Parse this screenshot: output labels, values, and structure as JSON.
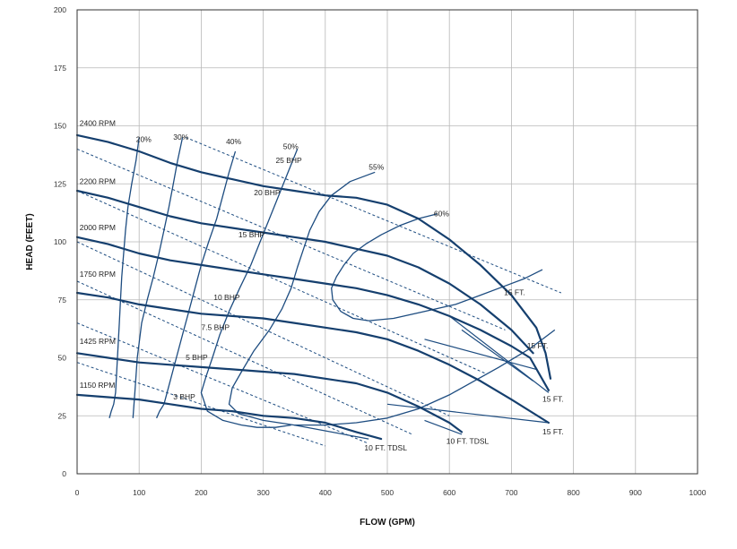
{
  "chart_data": {
    "type": "line",
    "xlabel": "FLOW (GPM)",
    "ylabel": "HEAD (FEET)",
    "xlim": [
      0,
      1000
    ],
    "ylim": [
      0,
      200
    ],
    "xticks": [
      "0",
      "100",
      "200",
      "300",
      "400",
      "500",
      "600",
      "700",
      "800",
      "900",
      "1000"
    ],
    "yticks": [
      "0",
      "25",
      "50",
      "75",
      "100",
      "125",
      "150",
      "175",
      "200"
    ],
    "grid": true,
    "speed_curves": [
      {
        "name": "2400 RPM",
        "x": [
          0,
          50,
          100,
          150,
          200,
          250,
          300,
          350,
          400,
          450,
          500,
          550,
          600,
          650,
          700,
          740,
          755,
          763
        ],
        "y": [
          146,
          143,
          139,
          134,
          130,
          127,
          124,
          122,
          120,
          119,
          116,
          110,
          101,
          90,
          77,
          63,
          52,
          41
        ]
      },
      {
        "name": "2200 RPM",
        "x": [
          0,
          50,
          100,
          150,
          200,
          250,
          300,
          350,
          400,
          450,
          500,
          550,
          600,
          650,
          700,
          735
        ],
        "y": [
          122,
          119,
          115,
          111,
          108,
          106,
          104,
          102,
          100,
          97,
          94,
          89,
          82,
          73,
          62,
          52
        ]
      },
      {
        "name": "2000 RPM",
        "x": [
          0,
          50,
          100,
          150,
          200,
          250,
          300,
          350,
          400,
          450,
          500,
          550,
          600,
          650,
          700,
          730,
          760
        ],
        "y": [
          102,
          99,
          95,
          92,
          90,
          88,
          86,
          84,
          82,
          80,
          77,
          73,
          68,
          62,
          55,
          50,
          36
        ]
      },
      {
        "name": "1750 RPM",
        "x": [
          0,
          50,
          100,
          150,
          200,
          250,
          300,
          350,
          400,
          450,
          500,
          550,
          600,
          650,
          700,
          760
        ],
        "y": [
          78,
          76,
          73,
          71,
          69,
          68,
          67,
          65,
          63,
          61,
          58,
          53,
          47,
          40,
          32,
          22
        ]
      },
      {
        "name": "1425 RPM",
        "x": [
          0,
          50,
          100,
          150,
          200,
          250,
          300,
          350,
          400,
          450,
          500,
          550,
          600,
          620
        ],
        "y": [
          52,
          50,
          48,
          47,
          46,
          45,
          44,
          43,
          41,
          39,
          35,
          29,
          22,
          18
        ]
      },
      {
        "name": "1150 RPM",
        "x": [
          0,
          50,
          100,
          150,
          200,
          250,
          300,
          350,
          400,
          450,
          490
        ],
        "y": [
          34,
          33,
          32,
          30,
          28,
          27,
          25,
          24,
          22,
          18,
          15
        ]
      }
    ],
    "efficiency_curves": [
      {
        "name": "20%",
        "x": [
          100,
          95,
          88,
          82,
          78,
          75,
          72,
          70,
          68,
          66,
          64,
          62,
          59,
          55,
          52
        ],
        "y": [
          145,
          135,
          125,
          115,
          105,
          95,
          85,
          75,
          65,
          55,
          45,
          35,
          30,
          27,
          24
        ]
      },
      {
        "name": "30%",
        "x": [
          170,
          162,
          155,
          148,
          140,
          132,
          123,
          113,
          104,
          97,
          93,
          90
        ],
        "y": [
          145,
          135,
          125,
          115,
          105,
          95,
          85,
          75,
          65,
          50,
          35,
          24
        ]
      },
      {
        "name": "40%",
        "x": [
          255,
          245,
          235,
          225,
          212,
          200,
          190,
          180,
          170,
          160,
          150,
          140,
          133,
          128
        ],
        "y": [
          139,
          130,
          120,
          110,
          100,
          90,
          80,
          70,
          60,
          50,
          40,
          30,
          27,
          24
        ]
      },
      {
        "name": "50%",
        "x": [
          355,
          340,
          325,
          310,
          295,
          280,
          262,
          245,
          230,
          218,
          208,
          200,
          210,
          235,
          265,
          290,
          320,
          345
        ],
        "y": [
          140,
          130,
          120,
          110,
          100,
          90,
          80,
          70,
          60,
          50,
          42,
          35,
          27,
          23,
          21,
          20,
          20,
          21
        ]
      },
      {
        "name": "55%",
        "x": [
          480,
          440,
          410,
          390,
          375,
          365,
          355,
          345,
          330,
          310,
          285,
          265,
          250,
          245,
          260,
          300,
          350,
          400,
          450,
          500,
          550,
          600,
          640,
          680,
          730,
          770
        ],
        "y": [
          130,
          126,
          120,
          113,
          105,
          97,
          89,
          80,
          71,
          62,
          53,
          44,
          37,
          30,
          26,
          23,
          21,
          21,
          22,
          24,
          28,
          34,
          40,
          46,
          54,
          62
        ]
      },
      {
        "name": "60%",
        "x": [
          580,
          550,
          520,
          490,
          465,
          445,
          430,
          418,
          410,
          412,
          425,
          445,
          470,
          510,
          560,
          610,
          650,
          690,
          720,
          750
        ],
        "y": [
          112,
          110,
          107,
          103,
          99,
          95,
          90,
          85,
          80,
          75,
          70,
          67,
          66,
          67,
          70,
          73,
          77,
          81,
          84,
          88
        ]
      }
    ],
    "power_curves": [
      {
        "name": "25 BHP",
        "x": [
          175,
          780
        ],
        "y": [
          145,
          78
        ]
      },
      {
        "name": "20 BHP",
        "x": [
          0,
          690
        ],
        "y": [
          140,
          62
        ]
      },
      {
        "name": "15 BHP",
        "x": [
          0,
          660
        ],
        "y": [
          122,
          43
        ]
      },
      {
        "name": "10 BHP",
        "x": [
          0,
          600
        ],
        "y": [
          100,
          25
        ]
      },
      {
        "name": "7.5 BHP",
        "x": [
          0,
          540
        ],
        "y": [
          83,
          17
        ]
      },
      {
        "name": "5 BHP",
        "x": [
          0,
          470
        ],
        "y": [
          65,
          13
        ]
      },
      {
        "name": "3 BHP",
        "x": [
          0,
          400
        ],
        "y": [
          48,
          12
        ]
      }
    ],
    "npsh_labels": [
      "10 FT. TDSL",
      "10 FT. TDSL",
      "15 FT.",
      "15 FT.",
      "15 FT.",
      "15 FT."
    ],
    "annotations": [
      {
        "text": "2400 RPM",
        "x": 4,
        "y": 150
      },
      {
        "text": "2200 RPM",
        "x": 4,
        "y": 125
      },
      {
        "text": "2000 RPM",
        "x": 4,
        "y": 105
      },
      {
        "text": "1750 RPM",
        "x": 4,
        "y": 85
      },
      {
        "text": "1425 RPM",
        "x": 4,
        "y": 56
      },
      {
        "text": "1150 RPM",
        "x": 4,
        "y": 37
      },
      {
        "text": "20%",
        "x": 95,
        "y": 143
      },
      {
        "text": "30%",
        "x": 155,
        "y": 144
      },
      {
        "text": "40%",
        "x": 240,
        "y": 142
      },
      {
        "text": "50%",
        "x": 332,
        "y": 140
      },
      {
        "text": "55%",
        "x": 470,
        "y": 131
      },
      {
        "text": "60%",
        "x": 575,
        "y": 111
      },
      {
        "text": "25 BHP",
        "x": 320,
        "y": 134
      },
      {
        "text": "20 BHP",
        "x": 285,
        "y": 120
      },
      {
        "text": "15 BHP",
        "x": 260,
        "y": 102
      },
      {
        "text": "10 BHP",
        "x": 220,
        "y": 75
      },
      {
        "text": "7.5 BHP",
        "x": 200,
        "y": 62
      },
      {
        "text": "5 BHP",
        "x": 175,
        "y": 49
      },
      {
        "text": "3 BHP",
        "x": 155,
        "y": 32
      },
      {
        "text": "15 FT.",
        "x": 688,
        "y": 77
      },
      {
        "text": "15 FT.",
        "x": 725,
        "y": 54
      },
      {
        "text": "15 FT.",
        "x": 750,
        "y": 31
      },
      {
        "text": "15 FT.",
        "x": 750,
        "y": 17
      },
      {
        "text": "10 FT. TDSL",
        "x": 463,
        "y": 10
      },
      {
        "text": "10 FT. TDSL",
        "x": 595,
        "y": 13
      }
    ]
  }
}
